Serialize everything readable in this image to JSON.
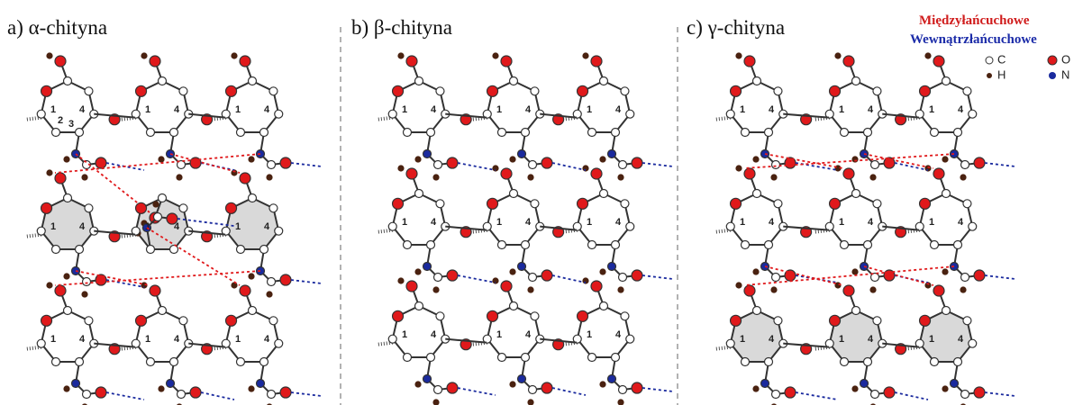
{
  "panels": [
    {
      "label": "a) α-chityna"
    },
    {
      "label": "b) β-chityna"
    },
    {
      "label": "c) γ-chityna"
    }
  ],
  "legend": {
    "inter": "Międzyłańcuchowe",
    "intra": "Wewnątrzłańcuchowe",
    "atoms": [
      "C",
      "O",
      "H",
      "N"
    ]
  },
  "ring_numbers": [
    "1",
    "2",
    "3",
    "4"
  ]
}
